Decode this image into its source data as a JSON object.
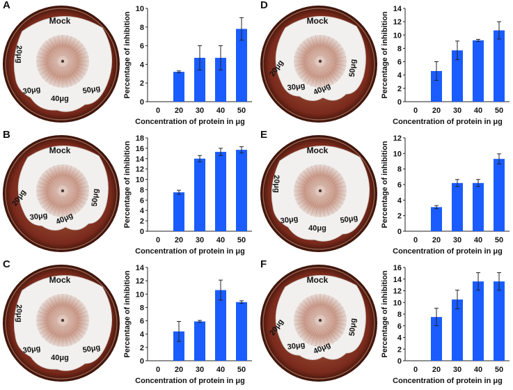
{
  "figure": {
    "panels": [
      {
        "letter": "A",
        "dish": {
          "mock": "Mock",
          "labels": [
            "20μg",
            "30μg",
            "40μg",
            "50μg"
          ]
        }
      },
      {
        "letter": "B",
        "dish": {
          "mock": "Mock",
          "labels": [
            "20μg",
            "30μg",
            "40μg",
            "50μg"
          ]
        }
      },
      {
        "letter": "C",
        "dish": {
          "mock": "Mock",
          "labels": [
            "20μg",
            "30μg",
            "40μg",
            "50μg"
          ]
        }
      },
      {
        "letter": "D",
        "dish": {
          "mock": "Mock",
          "labels": [
            "20μg",
            "30μg",
            "40μg",
            "50μg"
          ]
        }
      },
      {
        "letter": "E",
        "dish": {
          "mock": "Mock",
          "labels": [
            "20μg",
            "30μg",
            "40μg",
            "50μg"
          ]
        }
      },
      {
        "letter": "F",
        "dish": {
          "mock": "Mock",
          "labels": [
            "20μg",
            "30μg",
            "40μg",
            "50μg"
          ]
        }
      }
    ]
  },
  "colors": {
    "bar": "#1a5cff",
    "dish_rim": "#7a2a1c",
    "agar": "#b06a4c",
    "mycelium": "#f2f0ee",
    "colony_center": "#c99a8a"
  },
  "chart_data": [
    {
      "panel": "A",
      "type": "bar",
      "xlabel": "Concentration of protein in μg",
      "ylabel": "Percentage of inhibition",
      "categories": [
        "0",
        "20",
        "30",
        "40",
        "50"
      ],
      "values": [
        0,
        3.2,
        4.7,
        4.7,
        7.8
      ],
      "errors": [
        0,
        0.1,
        1.3,
        1.3,
        1.2
      ],
      "ylim": [
        0,
        10
      ],
      "yticks": [
        0,
        2,
        4,
        6,
        8,
        10
      ]
    },
    {
      "panel": "B",
      "type": "bar",
      "xlabel": "Concentration of protein in μg",
      "ylabel": "Percentage of inhibition",
      "categories": [
        "0",
        "20",
        "30",
        "40",
        "50"
      ],
      "values": [
        0,
        7.5,
        14.0,
        15.3,
        15.7
      ],
      "errors": [
        0,
        0.4,
        0.6,
        0.7,
        0.6
      ],
      "ylim": [
        0,
        18
      ],
      "yticks": [
        0,
        2,
        4,
        6,
        8,
        10,
        12,
        14,
        16,
        18
      ]
    },
    {
      "panel": "C",
      "type": "bar",
      "xlabel": "Concentration of protein in μg",
      "ylabel": "Percentage of inhibition",
      "categories": [
        "0",
        "20",
        "30",
        "40",
        "50"
      ],
      "values": [
        0,
        4.4,
        5.9,
        10.6,
        8.8
      ],
      "errors": [
        0,
        1.5,
        0.15,
        1.5,
        0.2
      ],
      "ylim": [
        0,
        14
      ],
      "yticks": [
        0,
        2,
        4,
        6,
        8,
        10,
        12,
        14
      ]
    },
    {
      "panel": "D",
      "type": "bar",
      "xlabel": "Concentration of protein in μg",
      "ylabel": "Percentage of inhibition",
      "categories": [
        "0",
        "20",
        "30",
        "40",
        "50"
      ],
      "values": [
        0,
        4.6,
        7.7,
        9.2,
        10.7
      ],
      "errors": [
        0,
        1.4,
        1.4,
        0.15,
        1.3
      ],
      "ylim": [
        0,
        14
      ],
      "yticks": [
        0,
        2,
        4,
        6,
        8,
        10,
        12,
        14
      ]
    },
    {
      "panel": "E",
      "type": "bar",
      "xlabel": "Concentration of protein in μg",
      "ylabel": "Percentage of inhibition",
      "categories": [
        "0",
        "20",
        "30",
        "40",
        "50"
      ],
      "values": [
        0,
        3.1,
        6.2,
        6.2,
        9.3
      ],
      "errors": [
        0,
        0.2,
        0.45,
        0.45,
        0.65
      ],
      "ylim": [
        0,
        12
      ],
      "yticks": [
        0,
        2,
        4,
        6,
        8,
        10,
        12
      ]
    },
    {
      "panel": "F",
      "type": "bar",
      "xlabel": "Concentration of protein in μg",
      "ylabel": "Percentage of inhibition",
      "categories": [
        "0",
        "20",
        "30",
        "40",
        "50"
      ],
      "values": [
        0,
        7.5,
        10.5,
        13.6,
        13.6
      ],
      "errors": [
        0,
        1.5,
        1.6,
        1.5,
        1.5
      ],
      "ylim": [
        0,
        16
      ],
      "yticks": [
        0,
        2,
        4,
        6,
        8,
        10,
        12,
        14,
        16
      ]
    }
  ]
}
